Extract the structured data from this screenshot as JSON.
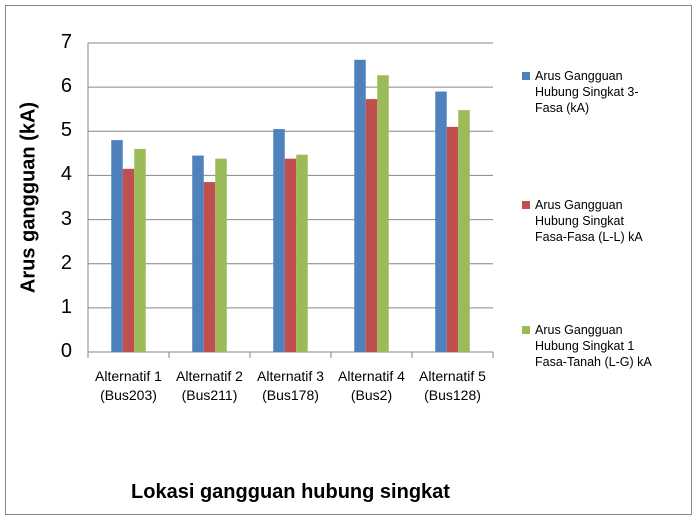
{
  "chart_data": {
    "type": "bar",
    "y_label": "Arus gangguan (kA)",
    "x_label": "Lokasi gangguan hubung singkat",
    "categories": [
      "Alternatif 1 (Bus203)",
      "Alternatif 2 (Bus211)",
      "Alternatif 3 (Bus178)",
      "Alternatif 4 (Bus2)",
      "Alternatif 5 (Bus128)"
    ],
    "series": [
      {
        "name": "Arus Gangguan Hubung Singkat 3-Fasa (kA)",
        "color": "#4f81bd",
        "values": [
          4.8,
          4.45,
          5.05,
          6.62,
          5.9
        ]
      },
      {
        "name": "Arus Gangguan Hubung Singkat Fasa-Fasa (L-L) kA",
        "color": "#c0504d",
        "values": [
          4.15,
          3.85,
          4.38,
          5.73,
          5.1
        ]
      },
      {
        "name": "Arus Gangguan Hubung Singkat 1 Fasa-Tanah (L-G) kA",
        "color": "#9bbb59",
        "values": [
          4.6,
          4.38,
          4.47,
          6.27,
          5.48
        ]
      }
    ],
    "ylim": [
      0,
      7
    ],
    "yticks": [
      0,
      1,
      2,
      3,
      4,
      5,
      6,
      7
    ],
    "grid": true,
    "legend": "right"
  }
}
